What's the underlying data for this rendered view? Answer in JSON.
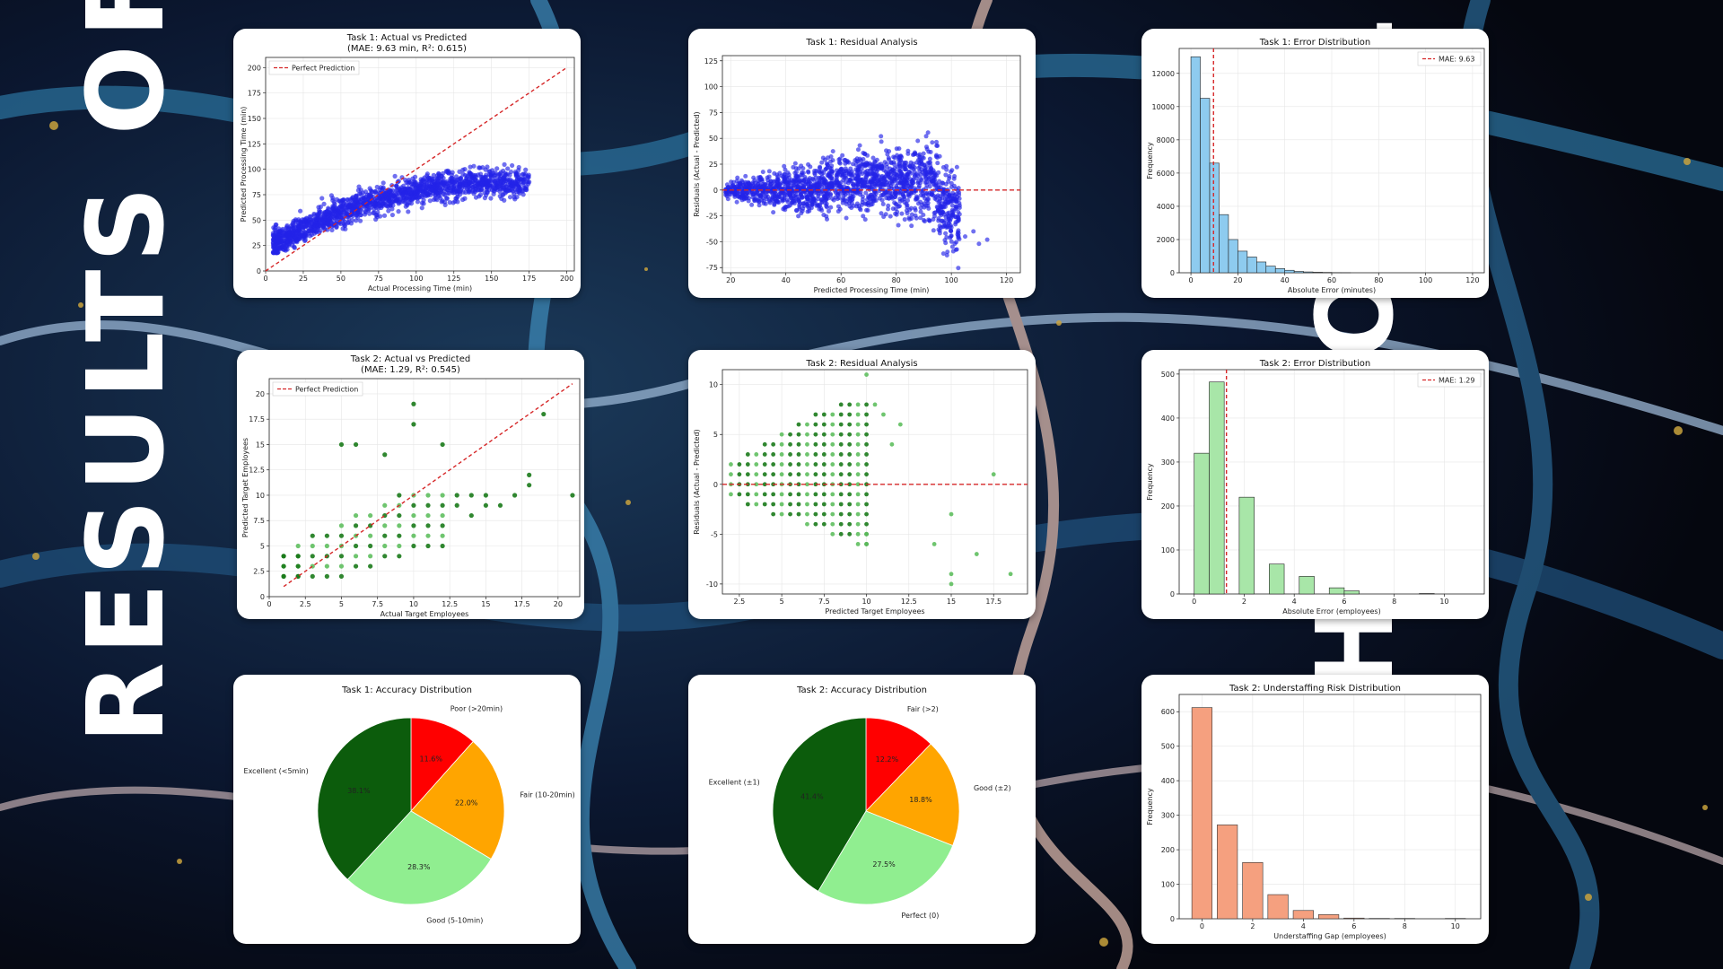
{
  "page": {
    "left_title": "RESULTS OF",
    "right_title": "THE MODEL"
  },
  "colors": {
    "blue_points": "#2323e8",
    "green_points": "#1a7a1a",
    "light_green_points": "#5fbf5f",
    "red_line": "#d62728",
    "hist_blue": "#8ecbef",
    "hist_green": "#a8e6a8",
    "hist_salmon": "#f5a07f",
    "pie_darkgreen": "#0c5c0c",
    "pie_lightgreen": "#90ee90",
    "pie_orange": "#ffa500",
    "pie_red": "#ff0000"
  },
  "chart_data": [
    {
      "id": "t1-scatter",
      "type": "scatter",
      "title": "Task 1: Actual vs Predicted",
      "subtitle": "(MAE: 9.63 min, R²: 0.615)",
      "xlabel": "Actual Processing Time (min)",
      "ylabel": "Predicted Processing Time (min)",
      "xlim": [
        0,
        205
      ],
      "ylim": [
        0,
        210
      ],
      "xticks": [
        0,
        25,
        50,
        75,
        100,
        125,
        150,
        175,
        200
      ],
      "yticks": [
        0,
        25,
        50,
        75,
        100,
        125,
        150,
        175,
        200
      ],
      "legend": "Perfect Prediction",
      "legend_position": "top-left",
      "reference_line": [
        [
          0,
          0
        ],
        [
          200,
          200
        ]
      ],
      "point_density": "dense cloud x 5-180, y 20-120"
    },
    {
      "id": "t1-resid",
      "type": "scatter",
      "title": "Task 1: Residual Analysis",
      "xlabel": "Predicted Processing Time (min)",
      "ylabel": "Residuals (Actual - Predicted)",
      "xlim": [
        17,
        125
      ],
      "ylim": [
        -80,
        130
      ],
      "xticks": [
        20,
        40,
        60,
        80,
        100,
        120
      ],
      "yticks": [
        -75,
        -50,
        -25,
        0,
        25,
        50,
        75,
        100,
        125
      ],
      "reference_line_y": 0
    },
    {
      "id": "t1-errhist",
      "type": "bar",
      "title": "Task 1: Error Distribution",
      "xlabel": "Absolute Error (minutes)",
      "ylabel": "Frequency",
      "xlim": [
        -5,
        125
      ],
      "ylim": [
        0,
        13500
      ],
      "xticks": [
        0,
        20,
        40,
        60,
        80,
        100,
        120
      ],
      "yticks": [
        0,
        2000,
        4000,
        6000,
        8000,
        10000,
        12000
      ],
      "bin_width": 4,
      "bin_start": 0,
      "values": [
        13000,
        10500,
        6600,
        3500,
        2000,
        1300,
        950,
        650,
        400,
        250,
        150,
        80,
        50,
        30,
        20,
        10,
        5
      ],
      "mae_line": 9.63,
      "legend": "MAE: 9.63",
      "legend_position": "top-right"
    },
    {
      "id": "t2-scatter",
      "type": "scatter",
      "title": "Task 2: Actual vs Predicted",
      "subtitle": "(MAE: 1.29, R²: 0.545)",
      "xlabel": "Actual Target Employees",
      "ylabel": "Predicted Target Employees",
      "xlim": [
        0,
        21.5
      ],
      "ylim": [
        0,
        21.5
      ],
      "xticks": [
        0.0,
        2.5,
        5.0,
        7.5,
        10.0,
        12.5,
        15.0,
        17.5,
        20.0
      ],
      "yticks": [
        0.0,
        2.5,
        5.0,
        7.5,
        10.0,
        12.5,
        15.0,
        17.5,
        20.0
      ],
      "legend": "Perfect Prediction",
      "legend_position": "top-left",
      "reference_line": [
        [
          1,
          1
        ],
        [
          21,
          21
        ]
      ]
    },
    {
      "id": "t2-resid",
      "type": "scatter",
      "title": "Task 2: Residual Analysis",
      "xlabel": "Predicted Target Employees",
      "ylabel": "Residuals (Actual - Predicted)",
      "xlim": [
        1.5,
        19.5
      ],
      "ylim": [
        -11,
        11.5
      ],
      "xticks": [
        2.5,
        5.0,
        7.5,
        10.0,
        12.5,
        15.0,
        17.5
      ],
      "yticks": [
        -10,
        -5,
        0,
        5,
        10
      ],
      "reference_line_y": 0
    },
    {
      "id": "t2-errhist",
      "type": "bar",
      "title": "Task 2: Error Distribution",
      "xlabel": "Absolute Error (employees)",
      "ylabel": "Frequency",
      "xlim": [
        -0.6,
        11.6
      ],
      "ylim": [
        0,
        510
      ],
      "xticks": [
        0,
        2,
        4,
        6,
        8,
        10
      ],
      "yticks": [
        0,
        100,
        200,
        300,
        400,
        500
      ],
      "bin_width": 0.6,
      "bin_start": 0,
      "values": [
        320,
        482,
        0,
        220,
        0,
        68,
        0,
        40,
        0,
        14,
        7,
        0,
        0,
        0,
        0,
        1
      ],
      "mae_line": 1.29,
      "legend": "MAE: 1.29",
      "legend_position": "top-right"
    },
    {
      "id": "t1-pie",
      "type": "pie",
      "title": "Task 1: Accuracy Distribution",
      "labels": [
        "Poor (>20min)",
        "Fair (10-20min)",
        "Good (5-10min)",
        "Excellent (<5min)"
      ],
      "values": [
        11.6,
        22.0,
        28.3,
        38.1
      ],
      "pct_labels": [
        "11.6%",
        "22.0%",
        "28.3%",
        "38.1%"
      ],
      "colors": [
        "#ff0000",
        "#ffa500",
        "#90ee90",
        "#0c5c0c"
      ]
    },
    {
      "id": "t2-pie",
      "type": "pie",
      "title": "Task 2: Accuracy Distribution",
      "labels": [
        "Fair (>2)",
        "Good (±2)",
        "Perfect (0)",
        "Excellent (±1)"
      ],
      "values": [
        12.2,
        18.8,
        27.5,
        41.4
      ],
      "pct_labels": [
        "12.2%",
        "18.8%",
        "27.5%",
        "41.4%"
      ],
      "colors": [
        "#ff0000",
        "#ffa500",
        "#90ee90",
        "#0c5c0c"
      ]
    },
    {
      "id": "t2-understaff",
      "type": "bar",
      "title": "Task 2: Understaffing Risk Distribution",
      "xlabel": "Understaffing Gap (employees)",
      "ylabel": "Frequency",
      "xlim": [
        -0.9,
        11.0
      ],
      "ylim": [
        0,
        650
      ],
      "xticks": [
        0,
        2,
        4,
        6,
        8,
        10
      ],
      "yticks": [
        0,
        100,
        200,
        300,
        400,
        500,
        600
      ],
      "categories": [
        0,
        1,
        2,
        3,
        4,
        5,
        6,
        7,
        8,
        9,
        10
      ],
      "values": [
        612,
        272,
        163,
        70,
        24,
        12,
        2,
        1,
        1,
        0,
        1
      ]
    }
  ]
}
